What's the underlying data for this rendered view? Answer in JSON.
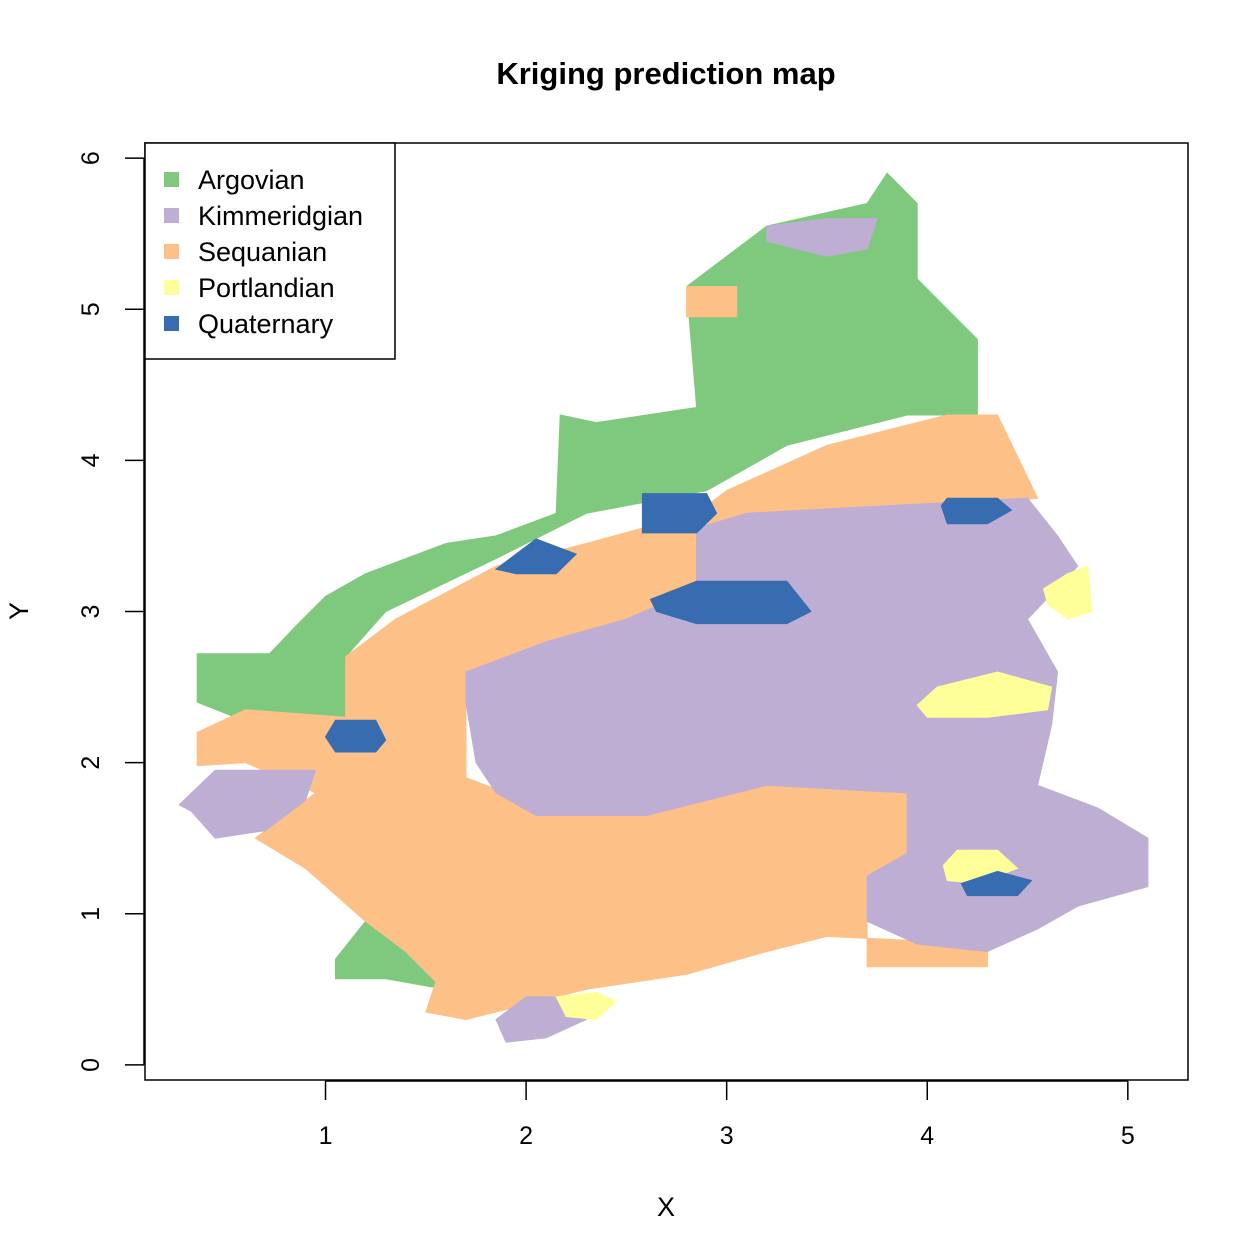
{
  "chart_data": {
    "type": "heatmap",
    "title": "Kriging prediction map",
    "xlabel": "X",
    "ylabel": "Y",
    "xlim": [
      0.1,
      5.3
    ],
    "ylim": [
      -0.1,
      6.1
    ],
    "x_ticks": [
      "1",
      "2",
      "3",
      "4",
      "5"
    ],
    "y_ticks": [
      "0",
      "1",
      "2",
      "3",
      "4",
      "5",
      "6"
    ],
    "legend_position": "top-left",
    "categories": [
      {
        "name": "Argovian",
        "color": "#7FC97F"
      },
      {
        "name": "Kimmeridgian",
        "color": "#BEAED4"
      },
      {
        "name": "Sequanian",
        "color": "#FDC086"
      },
      {
        "name": "Portlandian",
        "color": "#FFFF99"
      },
      {
        "name": "Quaternary",
        "color": "#386CB0"
      }
    ],
    "regions": [
      {
        "category": "Argovian",
        "polygon": [
          [
            0.36,
            2.72
          ],
          [
            0.72,
            2.72
          ],
          [
            0.85,
            2.9
          ],
          [
            1.0,
            3.1
          ],
          [
            1.2,
            3.25
          ],
          [
            1.6,
            3.45
          ],
          [
            1.85,
            3.5
          ],
          [
            2.15,
            3.65
          ],
          [
            2.17,
            4.3
          ],
          [
            2.35,
            4.25
          ],
          [
            2.85,
            4.35
          ],
          [
            2.8,
            5.15
          ],
          [
            3.2,
            5.55
          ],
          [
            3.7,
            5.7
          ],
          [
            3.8,
            5.9
          ],
          [
            3.95,
            5.7
          ],
          [
            3.95,
            5.2
          ],
          [
            4.25,
            4.8
          ],
          [
            4.25,
            4.3
          ],
          [
            3.9,
            4.3
          ],
          [
            3.3,
            4.1
          ],
          [
            2.9,
            3.8
          ],
          [
            2.3,
            3.65
          ],
          [
            1.85,
            3.35
          ],
          [
            1.3,
            3.0
          ],
          [
            1.1,
            2.7
          ],
          [
            1.1,
            2.3
          ],
          [
            0.55,
            2.3
          ],
          [
            0.36,
            2.4
          ]
        ]
      },
      {
        "category": "Argovian",
        "polygon": [
          [
            1.05,
            0.7
          ],
          [
            1.2,
            0.95
          ],
          [
            1.7,
            1.2
          ],
          [
            2.4,
            1.4
          ],
          [
            3.2,
            1.3
          ],
          [
            3.3,
            1.05
          ],
          [
            2.6,
            0.9
          ],
          [
            2.0,
            0.7
          ],
          [
            1.6,
            0.5
          ],
          [
            1.3,
            0.57
          ],
          [
            1.05,
            0.57
          ]
        ]
      },
      {
        "category": "Sequanian",
        "polygon": [
          [
            0.36,
            2.2
          ],
          [
            0.6,
            2.35
          ],
          [
            1.1,
            2.3
          ],
          [
            1.1,
            2.7
          ],
          [
            1.35,
            2.95
          ],
          [
            1.85,
            3.3
          ],
          [
            2.3,
            3.45
          ],
          [
            2.85,
            3.65
          ],
          [
            3.0,
            3.8
          ],
          [
            3.5,
            4.1
          ],
          [
            4.1,
            4.3
          ],
          [
            4.35,
            4.3
          ],
          [
            4.55,
            3.75
          ],
          [
            4.2,
            3.7
          ],
          [
            3.6,
            3.5
          ],
          [
            3.0,
            3.4
          ],
          [
            2.6,
            2.85
          ],
          [
            2.2,
            2.55
          ],
          [
            1.7,
            2.4
          ],
          [
            1.7,
            1.9
          ],
          [
            2.1,
            1.7
          ],
          [
            2.6,
            1.65
          ],
          [
            3.2,
            1.85
          ],
          [
            3.9,
            1.85
          ],
          [
            3.9,
            1.4
          ],
          [
            3.7,
            1.25
          ],
          [
            3.7,
            0.65
          ],
          [
            4.3,
            0.65
          ],
          [
            4.3,
            0.8
          ],
          [
            3.5,
            0.85
          ],
          [
            3.2,
            0.75
          ],
          [
            2.8,
            0.6
          ],
          [
            2.3,
            0.5
          ],
          [
            2.0,
            0.4
          ],
          [
            1.7,
            0.3
          ],
          [
            1.5,
            0.35
          ],
          [
            1.55,
            0.55
          ],
          [
            1.4,
            0.75
          ],
          [
            1.2,
            0.95
          ],
          [
            0.9,
            1.3
          ],
          [
            0.65,
            1.5
          ],
          [
            0.95,
            1.8
          ],
          [
            0.6,
            2.0
          ],
          [
            0.36,
            1.98
          ]
        ]
      },
      {
        "category": "Sequanian",
        "polygon": [
          [
            2.8,
            5.15
          ],
          [
            3.05,
            5.15
          ],
          [
            3.05,
            4.95
          ],
          [
            2.8,
            4.95
          ]
        ]
      },
      {
        "category": "Sequanian",
        "polygon": [
          [
            2.9,
            2.95
          ],
          [
            3.4,
            2.95
          ],
          [
            3.4,
            2.6
          ],
          [
            3.0,
            2.55
          ],
          [
            2.9,
            2.7
          ]
        ]
      },
      {
        "category": "Kimmeridgian",
        "polygon": [
          [
            1.7,
            2.6
          ],
          [
            2.1,
            2.8
          ],
          [
            2.5,
            2.95
          ],
          [
            2.85,
            3.15
          ],
          [
            2.85,
            3.55
          ],
          [
            3.1,
            3.65
          ],
          [
            3.8,
            3.7
          ],
          [
            4.5,
            3.75
          ],
          [
            4.65,
            3.5
          ],
          [
            4.75,
            3.3
          ],
          [
            4.5,
            2.95
          ],
          [
            4.65,
            2.6
          ],
          [
            4.62,
            2.25
          ],
          [
            4.55,
            1.85
          ],
          [
            4.85,
            1.7
          ],
          [
            5.1,
            1.5
          ],
          [
            5.1,
            1.18
          ],
          [
            4.75,
            1.05
          ],
          [
            4.55,
            0.9
          ],
          [
            4.3,
            0.75
          ],
          [
            3.95,
            0.8
          ],
          [
            3.7,
            0.95
          ],
          [
            3.7,
            1.25
          ],
          [
            3.9,
            1.4
          ],
          [
            3.9,
            1.8
          ],
          [
            3.2,
            1.85
          ],
          [
            2.6,
            1.65
          ],
          [
            2.05,
            1.65
          ],
          [
            1.85,
            1.8
          ],
          [
            1.75,
            2.0
          ],
          [
            1.7,
            2.4
          ]
        ]
      },
      {
        "category": "Kimmeridgian",
        "polygon": [
          [
            3.2,
            5.55
          ],
          [
            3.5,
            5.6
          ],
          [
            3.75,
            5.6
          ],
          [
            3.7,
            5.4
          ],
          [
            3.5,
            5.35
          ],
          [
            3.2,
            5.45
          ]
        ]
      },
      {
        "category": "Kimmeridgian",
        "polygon": [
          [
            0.27,
            1.72
          ],
          [
            0.45,
            1.95
          ],
          [
            0.95,
            1.95
          ],
          [
            0.9,
            1.75
          ],
          [
            0.7,
            1.55
          ],
          [
            0.45,
            1.5
          ],
          [
            0.33,
            1.68
          ]
        ]
      },
      {
        "category": "Kimmeridgian",
        "polygon": [
          [
            1.85,
            0.3
          ],
          [
            2.0,
            0.45
          ],
          [
            2.2,
            0.45
          ],
          [
            2.3,
            0.3
          ],
          [
            2.1,
            0.18
          ],
          [
            1.9,
            0.15
          ]
        ]
      },
      {
        "category": "Portlandian",
        "polygon": [
          [
            3.95,
            2.38
          ],
          [
            4.05,
            2.5
          ],
          [
            4.35,
            2.6
          ],
          [
            4.62,
            2.5
          ],
          [
            4.6,
            2.35
          ],
          [
            4.3,
            2.3
          ],
          [
            4.0,
            2.3
          ]
        ]
      },
      {
        "category": "Portlandian",
        "polygon": [
          [
            4.58,
            3.15
          ],
          [
            4.7,
            3.25
          ],
          [
            4.8,
            3.3
          ],
          [
            4.82,
            3.0
          ],
          [
            4.7,
            2.95
          ],
          [
            4.6,
            3.05
          ]
        ]
      },
      {
        "category": "Portlandian",
        "polygon": [
          [
            4.08,
            1.32
          ],
          [
            4.15,
            1.42
          ],
          [
            4.35,
            1.42
          ],
          [
            4.45,
            1.3
          ],
          [
            4.25,
            1.2
          ],
          [
            4.1,
            1.22
          ]
        ]
      },
      {
        "category": "Portlandian",
        "polygon": [
          [
            2.15,
            0.45
          ],
          [
            2.35,
            0.48
          ],
          [
            2.45,
            0.42
          ],
          [
            2.35,
            0.3
          ],
          [
            2.2,
            0.32
          ]
        ]
      },
      {
        "category": "Quaternary",
        "polygon": [
          [
            2.58,
            3.78
          ],
          [
            2.9,
            3.78
          ],
          [
            2.95,
            3.65
          ],
          [
            2.85,
            3.52
          ],
          [
            2.58,
            3.52
          ]
        ]
      },
      {
        "category": "Quaternary",
        "polygon": [
          [
            1.85,
            3.28
          ],
          [
            2.05,
            3.48
          ],
          [
            2.25,
            3.38
          ],
          [
            2.15,
            3.25
          ],
          [
            1.95,
            3.25
          ]
        ]
      },
      {
        "category": "Quaternary",
        "polygon": [
          [
            2.62,
            3.08
          ],
          [
            2.85,
            3.2
          ],
          [
            3.3,
            3.2
          ],
          [
            3.42,
            3.0
          ],
          [
            3.3,
            2.92
          ],
          [
            2.85,
            2.92
          ],
          [
            2.65,
            3.0
          ]
        ]
      },
      {
        "category": "Quaternary",
        "polygon": [
          [
            1.0,
            2.17
          ],
          [
            1.05,
            2.28
          ],
          [
            1.25,
            2.28
          ],
          [
            1.3,
            2.15
          ],
          [
            1.25,
            2.07
          ],
          [
            1.05,
            2.07
          ]
        ]
      },
      {
        "category": "Quaternary",
        "polygon": [
          [
            4.07,
            3.7
          ],
          [
            4.1,
            3.75
          ],
          [
            4.35,
            3.75
          ],
          [
            4.42,
            3.67
          ],
          [
            4.3,
            3.58
          ],
          [
            4.1,
            3.58
          ]
        ]
      },
      {
        "category": "Quaternary",
        "polygon": [
          [
            4.17,
            1.2
          ],
          [
            4.35,
            1.28
          ],
          [
            4.52,
            1.22
          ],
          [
            4.45,
            1.12
          ],
          [
            4.2,
            1.12
          ]
        ]
      }
    ]
  }
}
